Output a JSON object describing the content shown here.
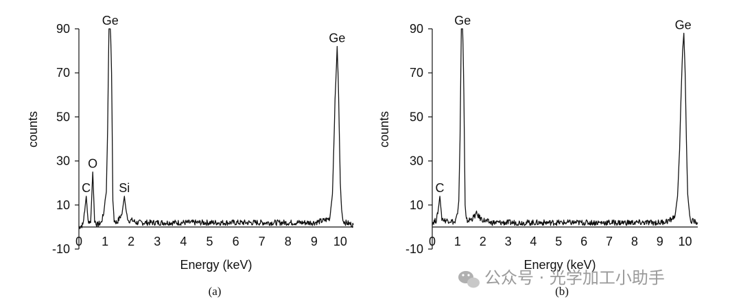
{
  "chart_data": [
    {
      "type": "line",
      "panel_label": "(a)",
      "xlabel": "Energy (keV)",
      "ylabel": "counts",
      "xlim": [
        0,
        10.5
      ],
      "ylim": [
        -10,
        90
      ],
      "xticks": [
        0,
        1,
        2,
        3,
        4,
        5,
        6,
        7,
        8,
        9,
        10
      ],
      "yticks": [
        -10,
        10,
        30,
        50,
        70,
        90
      ],
      "grid": false,
      "annotations": [
        {
          "text": "C",
          "x": 0.28,
          "y": 14
        },
        {
          "text": "O",
          "x": 0.53,
          "y": 25
        },
        {
          "text": "Ge",
          "x": 1.2,
          "y": 95
        },
        {
          "text": "Si",
          "x": 1.74,
          "y": 14
        },
        {
          "text": "Ge",
          "x": 9.88,
          "y": 82
        }
      ],
      "series": [
        {
          "x": [
            0,
            0.15,
            0.22,
            0.28,
            0.35,
            0.45,
            0.53,
            0.6,
            0.7,
            0.85,
            0.95,
            1.0,
            1.05,
            1.1,
            1.15,
            1.2,
            1.25,
            1.3,
            1.35,
            1.45,
            1.55,
            1.65,
            1.74,
            1.82,
            1.9,
            2.05,
            2.2,
            2.5,
            3.0,
            3.5,
            4.0,
            4.5,
            5.0,
            5.5,
            6.0,
            6.5,
            7.0,
            7.5,
            8.0,
            8.5,
            9.0,
            9.4,
            9.6,
            9.7,
            9.75,
            9.8,
            9.85,
            9.88,
            9.92,
            9.96,
            10.0,
            10.05,
            10.1,
            10.2,
            10.5
          ],
          "values": [
            0,
            1,
            7,
            14,
            3,
            2,
            25,
            3,
            1,
            2,
            6,
            12,
            16,
            45,
            95,
            95,
            70,
            12,
            3,
            2,
            4,
            6,
            14,
            6,
            3,
            3,
            2,
            2,
            2,
            2,
            2,
            2,
            2,
            2,
            2,
            2,
            2,
            2,
            2,
            2,
            2,
            3,
            4,
            15,
            35,
            58,
            72,
            82,
            68,
            45,
            20,
            8,
            3,
            2,
            1
          ]
        }
      ]
    },
    {
      "type": "line",
      "panel_label": "(b)",
      "xlabel": "Energy (keV)",
      "ylabel": "counts",
      "xlim": [
        0,
        10.5
      ],
      "ylim": [
        -10,
        90
      ],
      "xticks": [
        0,
        1,
        2,
        3,
        4,
        5,
        6,
        7,
        8,
        9,
        10
      ],
      "yticks": [
        -10,
        10,
        30,
        50,
        70,
        90
      ],
      "grid": false,
      "annotations": [
        {
          "text": "Ge",
          "x": 1.2,
          "y": 95
        },
        {
          "text": "C",
          "x": 0.3,
          "y": 14
        },
        {
          "text": "Ge",
          "x": 9.92,
          "y": 88
        }
      ],
      "series": [
        {
          "x": [
            0,
            0.15,
            0.22,
            0.3,
            0.38,
            0.5,
            0.7,
            0.9,
            1.0,
            1.05,
            1.1,
            1.15,
            1.2,
            1.25,
            1.3,
            1.35,
            1.45,
            1.6,
            1.75,
            1.9,
            2.05,
            2.3,
            2.6,
            3.0,
            3.5,
            4.0,
            4.5,
            5.0,
            5.5,
            6.0,
            6.5,
            7.0,
            7.5,
            8.0,
            8.5,
            9.0,
            9.4,
            9.6,
            9.7,
            9.78,
            9.84,
            9.9,
            9.95,
            10.0,
            10.05,
            10.1,
            10.2,
            10.5
          ],
          "values": [
            2,
            3,
            6,
            14,
            4,
            3,
            3,
            2,
            6,
            12,
            40,
            95,
            95,
            60,
            10,
            3,
            3,
            4,
            6,
            4,
            3,
            2,
            2,
            2,
            2,
            2,
            2,
            2,
            2,
            2,
            2,
            2,
            2,
            2,
            2,
            2,
            3,
            5,
            14,
            35,
            60,
            80,
            88,
            70,
            40,
            15,
            3,
            2
          ]
        }
      ]
    }
  ],
  "watermark": {
    "text": "公众号 · 光学加工小助手",
    "icon": "wechat-icon"
  }
}
